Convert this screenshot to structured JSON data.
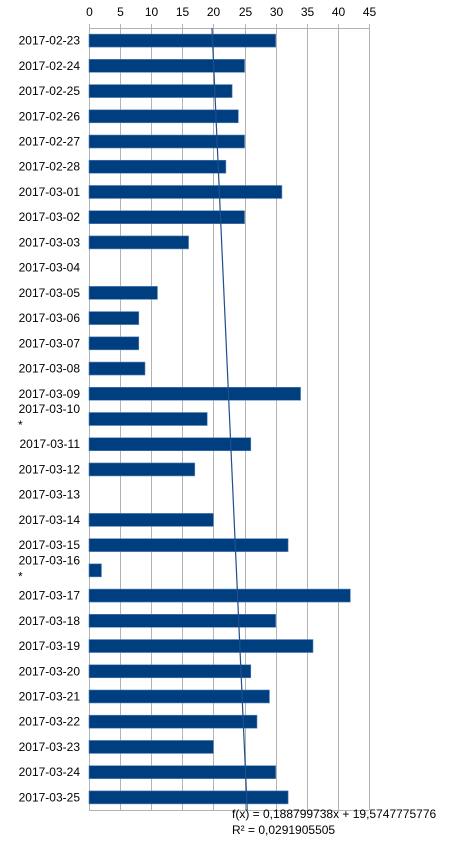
{
  "chart_data": {
    "type": "bar",
    "orientation": "horizontal",
    "title": "",
    "xlabel": "",
    "ylabel": "",
    "xlim": [
      0,
      45
    ],
    "x_ticks": [
      0,
      5,
      10,
      15,
      20,
      25,
      30,
      35,
      40,
      45
    ],
    "x_axis_position": "top",
    "grid": true,
    "bar_color": "#003f7f",
    "categories": [
      "2017-02-23",
      "2017-02-24",
      "2017-02-25",
      "2017-02-26",
      "2017-02-27",
      "2017-02-28",
      "2017-03-01",
      "2017-03-02",
      "2017-03-03",
      "2017-03-04",
      "2017-03-05",
      "2017-03-06",
      "2017-03-07",
      "2017-03-08",
      "2017-03-09",
      "2017-03-10\n*",
      "2017-03-11",
      "2017-03-12",
      "2017-03-13",
      "2017-03-14",
      "2017-03-15",
      "2017-03-16\n*",
      "2017-03-17",
      "2017-03-18",
      "2017-03-19",
      "2017-03-20",
      "2017-03-21",
      "2017-03-22",
      "2017-03-23",
      "2017-03-24",
      "2017-03-25"
    ],
    "values": [
      30,
      25,
      23,
      24,
      25,
      22,
      31,
      25,
      16,
      0,
      11,
      8,
      8,
      9,
      34,
      19,
      26,
      17,
      0,
      20,
      32,
      2,
      42,
      30,
      36,
      26,
      29,
      27,
      20,
      30,
      32
    ],
    "trendline": {
      "type": "linear",
      "slope": 0.188799738,
      "intercept": 19.5747775776,
      "r_squared": 0.0291905505,
      "color": "#1f4e8c",
      "equation_text": "f(x) = 0,188799738x + 19,5747775776",
      "r2_text": "R² = 0,0291905505"
    }
  }
}
